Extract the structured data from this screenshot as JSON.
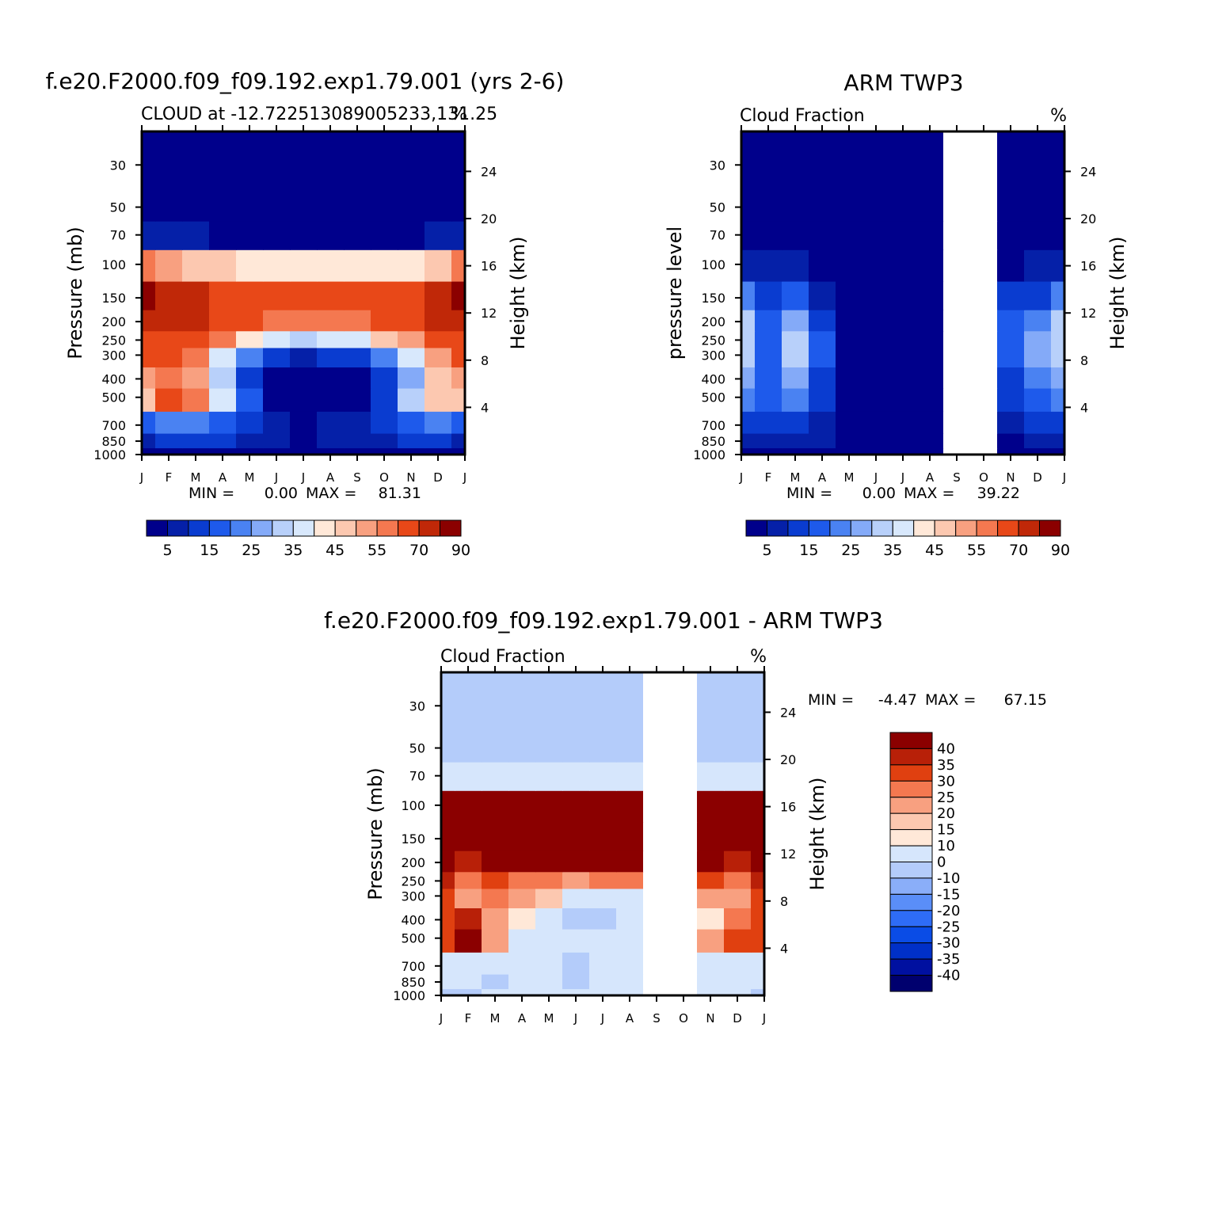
{
  "chart_data": [
    {
      "type": "heatmap",
      "title": "f.e20.F2000.f09_f09.192.exp1.79.001 (yrs 2-6)",
      "subtitle": "CLOUD at -12.722513089005233,131.25",
      "units": "%",
      "ylabel": "Pressure (mb)",
      "ylabel_right": "Height (km)",
      "x": [
        "J",
        "F",
        "M",
        "A",
        "M",
        "J",
        "J",
        "A",
        "S",
        "O",
        "N",
        "D",
        "J"
      ],
      "y_pressure": [
        1000,
        850,
        700,
        500,
        400,
        300,
        250,
        200,
        150,
        100,
        70,
        50,
        30
      ],
      "height_ticks_km": [
        4,
        8,
        12,
        16,
        20,
        24
      ],
      "values": [
        [
          2,
          2,
          3,
          3,
          2,
          1,
          1,
          1,
          2,
          2,
          3,
          3,
          2
        ],
        [
          8,
          10,
          12,
          10,
          8,
          5,
          4,
          5,
          6,
          8,
          10,
          10,
          8
        ],
        [
          18,
          20,
          22,
          18,
          12,
          6,
          4,
          5,
          8,
          12,
          18,
          22,
          18
        ],
        [
          48,
          62,
          58,
          38,
          15,
          3,
          1,
          1,
          3,
          14,
          30,
          45,
          48
        ],
        [
          52,
          56,
          50,
          32,
          14,
          3,
          1,
          1,
          3,
          12,
          28,
          45,
          52
        ],
        [
          62,
          60,
          56,
          38,
          20,
          10,
          8,
          10,
          14,
          20,
          36,
          50,
          62
        ],
        [
          68,
          68,
          64,
          56,
          42,
          35,
          33,
          35,
          38,
          45,
          52,
          60,
          68
        ],
        [
          75,
          75,
          70,
          65,
          62,
          58,
          55,
          56,
          58,
          62,
          65,
          70,
          75
        ],
        [
          80,
          78,
          72,
          68,
          66,
          65,
          60,
          62,
          64,
          66,
          64,
          72,
          80
        ],
        [
          55,
          50,
          48,
          45,
          42,
          40,
          40,
          40,
          42,
          42,
          42,
          45,
          55
        ],
        [
          5,
          6,
          5,
          4,
          3,
          3,
          3,
          3,
          3,
          3,
          4,
          5,
          5
        ],
        [
          0,
          0,
          0,
          0,
          0,
          0,
          0,
          0,
          0,
          0,
          0,
          0,
          0
        ],
        [
          0,
          0,
          0,
          0,
          0,
          0,
          0,
          0,
          0,
          0,
          0,
          0,
          0
        ]
      ],
      "stats": {
        "min_label": "MIN =",
        "min": "0.00",
        "max_label": "MAX =",
        "max": "81.31"
      },
      "colorbar": {
        "labels": [
          "5",
          "15",
          "25",
          "35",
          "45",
          "55",
          "70",
          "90"
        ],
        "levels": [
          5,
          10,
          15,
          20,
          25,
          30,
          35,
          40,
          45,
          50,
          55,
          60,
          70,
          80,
          90
        ]
      }
    },
    {
      "type": "heatmap",
      "title": "ARM TWP3",
      "subtitle": "Cloud Fraction",
      "units": "%",
      "ylabel": "pressure level",
      "ylabel_right": "Height (km)",
      "x": [
        "J",
        "F",
        "M",
        "A",
        "M",
        "J",
        "J",
        "A",
        "S",
        "O",
        "N",
        "D",
        "J"
      ],
      "y_pressure": [
        1000,
        850,
        700,
        500,
        400,
        300,
        250,
        200,
        150,
        100,
        70,
        50,
        30
      ],
      "height_ticks_km": [
        4,
        8,
        12,
        16,
        20,
        24
      ],
      "missing_months": [
        8,
        9
      ],
      "values": [
        [
          3,
          2,
          2,
          2,
          2,
          2,
          2,
          2,
          null,
          null,
          2,
          2,
          3
        ],
        [
          8,
          7,
          8,
          6,
          3,
          2,
          2,
          2,
          null,
          null,
          4,
          6,
          8
        ],
        [
          14,
          12,
          14,
          8,
          3,
          2,
          2,
          2,
          null,
          null,
          8,
          12,
          14
        ],
        [
          20,
          15,
          22,
          12,
          3,
          2,
          2,
          2,
          null,
          null,
          12,
          16,
          20
        ],
        [
          26,
          16,
          28,
          14,
          3,
          2,
          2,
          2,
          null,
          null,
          14,
          20,
          26
        ],
        [
          32,
          18,
          34,
          16,
          4,
          2,
          2,
          2,
          null,
          null,
          18,
          26,
          32
        ],
        [
          34,
          18,
          34,
          16,
          4,
          2,
          2,
          2,
          null,
          null,
          18,
          28,
          34
        ],
        [
          30,
          16,
          26,
          14,
          3,
          2,
          2,
          2,
          null,
          null,
          16,
          24,
          30
        ],
        [
          20,
          12,
          16,
          8,
          2,
          2,
          2,
          2,
          null,
          null,
          10,
          14,
          20
        ],
        [
          8,
          6,
          7,
          3,
          2,
          2,
          2,
          2,
          null,
          null,
          4,
          5,
          8
        ],
        [
          2,
          2,
          2,
          2,
          2,
          2,
          2,
          2,
          null,
          null,
          2,
          2,
          2
        ],
        [
          1,
          1,
          1,
          1,
          1,
          1,
          1,
          1,
          null,
          null,
          1,
          1,
          1
        ],
        [
          0,
          0,
          0,
          0,
          0,
          0,
          0,
          0,
          null,
          null,
          0,
          0,
          0
        ]
      ],
      "stats": {
        "min_label": "MIN =",
        "min": "0.00",
        "max_label": "MAX =",
        "max": "39.22"
      },
      "colorbar": {
        "labels": [
          "5",
          "15",
          "25",
          "35",
          "45",
          "55",
          "70",
          "90"
        ],
        "levels": [
          5,
          10,
          15,
          20,
          25,
          30,
          35,
          40,
          45,
          50,
          55,
          60,
          70,
          80,
          90
        ]
      }
    },
    {
      "type": "heatmap",
      "title": "f.e20.F2000.f09_f09.192.exp1.79.001 - ARM TWP3",
      "subtitle": "Cloud Fraction",
      "units": "%",
      "ylabel": "Pressure (mb)",
      "ylabel_right": "Height (km)",
      "x": [
        "J",
        "F",
        "M",
        "A",
        "M",
        "J",
        "J",
        "A",
        "S",
        "O",
        "N",
        "D",
        "J"
      ],
      "y_pressure": [
        1000,
        850,
        700,
        500,
        400,
        300,
        250,
        200,
        150,
        100,
        70,
        50,
        30
      ],
      "height_ticks_km": [
        4,
        8,
        12,
        16,
        20,
        24
      ],
      "missing_months": [
        8,
        9
      ],
      "values": [
        [
          -2,
          -4,
          2,
          3,
          2,
          1,
          1,
          2,
          null,
          null,
          2,
          2,
          -2
        ],
        [
          2,
          3,
          -3,
          4,
          2,
          -2,
          8,
          3,
          null,
          null,
          4,
          3,
          2
        ],
        [
          6,
          5,
          8,
          6,
          3,
          -2,
          1,
          3,
          null,
          null,
          6,
          5,
          6
        ],
        [
          30,
          42,
          20,
          6,
          3,
          2,
          2,
          2,
          null,
          null,
          20,
          34,
          30
        ],
        [
          30,
          36,
          22,
          12,
          5,
          -2,
          -3,
          3,
          null,
          null,
          14,
          28,
          30
        ],
        [
          32,
          20,
          28,
          24,
          15,
          7,
          6,
          8,
          null,
          null,
          24,
          24,
          32
        ],
        [
          35,
          25,
          32,
          28,
          26,
          22,
          25,
          28,
          null,
          null,
          30,
          28,
          35
        ],
        [
          45,
          38,
          42,
          42,
          42,
          40,
          42,
          44,
          null,
          null,
          42,
          38,
          45
        ],
        [
          48,
          48,
          48,
          48,
          48,
          48,
          48,
          48,
          null,
          null,
          48,
          48,
          48
        ],
        [
          46,
          46,
          46,
          46,
          46,
          46,
          46,
          46,
          null,
          null,
          46,
          46,
          46
        ],
        [
          3,
          3,
          3,
          3,
          3,
          3,
          3,
          3,
          null,
          null,
          3,
          3,
          3
        ],
        [
          -2,
          -2,
          -2,
          -2,
          -2,
          -2,
          -2,
          -2,
          null,
          null,
          -2,
          -2,
          -2
        ],
        [
          -2,
          -2,
          -2,
          -2,
          -2,
          -2,
          -2,
          -2,
          null,
          null,
          -2,
          -2,
          -2
        ]
      ],
      "stats": {
        "min_label": "MIN =",
        "min": "-4.47",
        "max_label": "MAX =",
        "max": "67.15"
      },
      "colorbar": {
        "labels": [
          "40",
          "35",
          "30",
          "25",
          "20",
          "15",
          "10",
          "0",
          "-10",
          "-15",
          "-20",
          "-25",
          "-30",
          "-35",
          "-40"
        ],
        "levels": [
          -40,
          -35,
          -30,
          -25,
          -20,
          -15,
          -10,
          0,
          10,
          15,
          20,
          25,
          30,
          35,
          40
        ]
      }
    }
  ],
  "colors": {
    "seq15": [
      "#00008b",
      "#0520a8",
      "#0a3cd0",
      "#1e5aeb",
      "#4a82f2",
      "#84aaf8",
      "#b8d0fa",
      "#d8e8fc",
      "#ffe8d8",
      "#fcc8b0",
      "#f8a080",
      "#f47850",
      "#e84818",
      "#c02808",
      "#8b0000"
    ],
    "diff16": [
      "#00006e",
      "#0010a0",
      "#0030c8",
      "#0a4ce6",
      "#2e6cf6",
      "#5a8ef8",
      "#8aaef9",
      "#b4ccfa",
      "#d6e6fc",
      "#ffe8d8",
      "#fcc8b0",
      "#f8a080",
      "#f47850",
      "#e04010",
      "#b82008",
      "#8b0000"
    ]
  }
}
